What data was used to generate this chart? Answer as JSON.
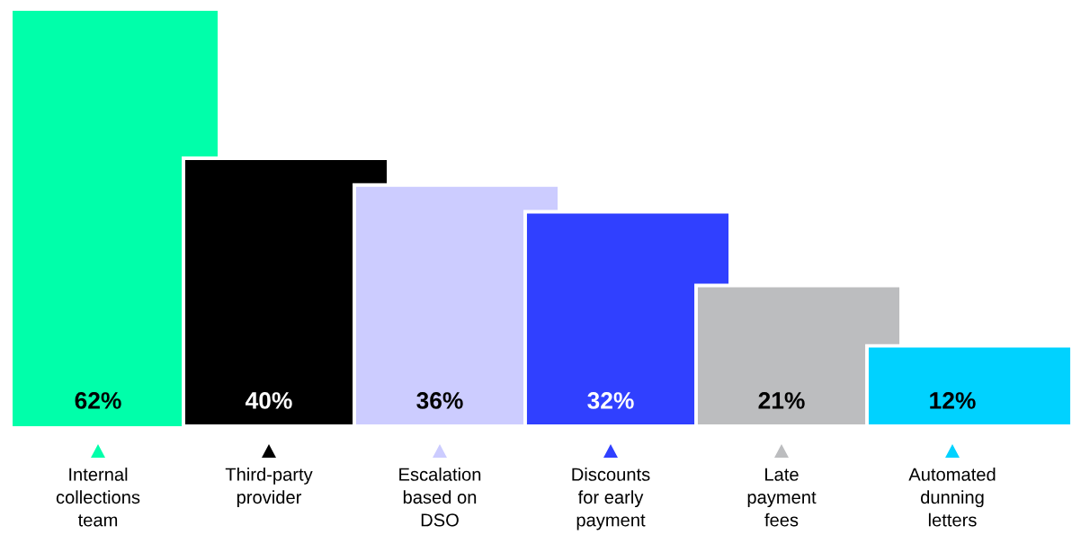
{
  "chart_data": {
    "type": "bar",
    "categories": [
      "Internal\ncollections\nteam",
      "Third-party\nprovider",
      "Escalation\nbased on\nDSO",
      "Discounts\nfor early\npayment",
      "Late\npayment\nfees",
      "Automated\ndunning\nletters"
    ],
    "values": [
      62,
      40,
      36,
      32,
      21,
      12
    ],
    "colors": [
      "#00ffaa",
      "#000000",
      "#ccccff",
      "#3040ff",
      "#bcbdbf",
      "#00d2ff"
    ],
    "value_labels": [
      "62%",
      "40%",
      "36%",
      "32%",
      "21%",
      "12%"
    ],
    "legend": false
  }
}
